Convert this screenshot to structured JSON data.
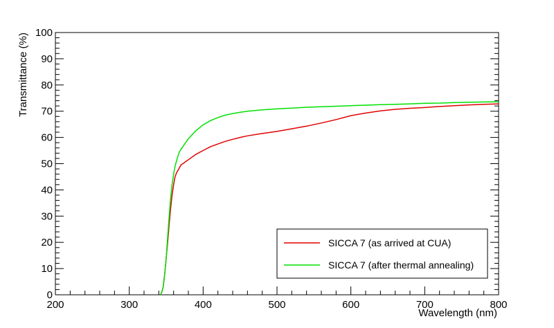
{
  "chart_data": {
    "type": "line",
    "xlabel": "Wavelength (nm)",
    "ylabel": "Transmittance (%)",
    "xlim": [
      200,
      800
    ],
    "ylim": [
      0,
      100
    ],
    "x_ticks": [
      200,
      300,
      400,
      500,
      600,
      700,
      800
    ],
    "y_ticks": [
      0,
      10,
      20,
      30,
      40,
      50,
      60,
      70,
      80,
      90,
      100
    ],
    "grid": false,
    "legend_position": "bottom-right",
    "series": [
      {
        "name": "SICCA 7 (as arrived at CUA)",
        "color": "#e00000",
        "x": [
          342,
          344,
          346,
          348,
          350,
          352,
          354,
          356,
          358,
          360,
          362,
          364,
          366,
          368,
          370,
          375,
          380,
          390,
          400,
          410,
          420,
          430,
          440,
          450,
          460,
          480,
          500,
          520,
          540,
          560,
          580,
          600,
          620,
          640,
          660,
          680,
          700,
          720,
          740,
          760,
          780,
          800
        ],
        "y": [
          0,
          1,
          3,
          8,
          14,
          20,
          27,
          33,
          38,
          42,
          45,
          46.5,
          47.5,
          48.5,
          49.5,
          50.5,
          51.5,
          53.5,
          55,
          56.5,
          57.5,
          58.5,
          59.3,
          60,
          60.6,
          61.5,
          62.3,
          63.3,
          64.3,
          65.5,
          66.8,
          68.3,
          69.3,
          70.1,
          70.7,
          71.1,
          71.4,
          71.8,
          72.1,
          72.4,
          72.6,
          72.8
        ]
      },
      {
        "name": "SICCA 7 (after thermal annealing)",
        "color": "#00e000",
        "x": [
          342,
          344,
          346,
          348,
          350,
          352,
          354,
          356,
          358,
          360,
          362,
          364,
          366,
          368,
          370,
          375,
          380,
          390,
          400,
          410,
          420,
          430,
          440,
          450,
          460,
          480,
          500,
          520,
          540,
          560,
          580,
          600,
          620,
          640,
          660,
          680,
          700,
          720,
          740,
          760,
          780,
          800
        ],
        "y": [
          0,
          1,
          3,
          8,
          14,
          22,
          30,
          37,
          42,
          46,
          49,
          51,
          53,
          54.5,
          55.5,
          57.5,
          59.5,
          62.5,
          64.8,
          66.4,
          67.6,
          68.5,
          69.1,
          69.6,
          70,
          70.5,
          70.9,
          71.2,
          71.5,
          71.7,
          71.9,
          72.1,
          72.3,
          72.5,
          72.6,
          72.8,
          73,
          73.1,
          73.3,
          73.4,
          73.5,
          73.6
        ]
      }
    ]
  }
}
